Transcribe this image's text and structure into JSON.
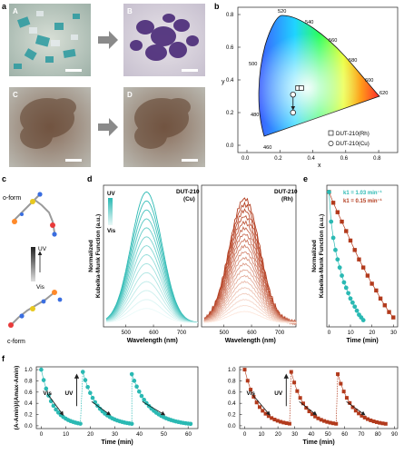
{
  "panel_letters": {
    "a": "a",
    "b": "b",
    "c": "c",
    "d": "d",
    "e": "e",
    "f": "f"
  },
  "micrographs": [
    {
      "letter": "A"
    },
    {
      "letter": "B"
    },
    {
      "letter": "C"
    },
    {
      "letter": "D"
    }
  ],
  "colors": {
    "cu": "#2ab9b3",
    "rh": "#b23a1c",
    "cu_light": "#bfeae7",
    "rh_light": "#f2b79a"
  },
  "molecule": {
    "o_form": "o-form",
    "c_form": "c-form",
    "uv": "UV",
    "vis": "Vis"
  },
  "cie": {
    "xlabel": "x",
    "ylabel": "y",
    "x_ticks": [
      "0.0",
      "0.2",
      "0.4",
      "0.6",
      "0.8"
    ],
    "y_ticks": [
      "0.0",
      "0.2",
      "0.4",
      "0.6",
      "0.8"
    ],
    "wavelengths": [
      "460",
      "480",
      "500",
      "520",
      "540",
      "560",
      "580",
      "600",
      "620"
    ],
    "legend": [
      "DUT-210(Rh)",
      "DUT-210(Cu)"
    ],
    "points": {
      "rh": [
        [
          0.31,
          0.35
        ],
        [
          0.33,
          0.35
        ]
      ],
      "cu": [
        [
          0.28,
          0.31
        ],
        [
          0.28,
          0.2
        ]
      ]
    }
  },
  "chart_data": [
    {
      "panel": "d-left",
      "type": "line",
      "title": "DUT-210 (Cu)",
      "xlabel": "Wavelength (nm)",
      "ylabel": "Normalized Kubelka-Munk Function (a.u.)",
      "xlim": [
        420,
        760
      ],
      "ylim": [
        0,
        1.05
      ],
      "x_ticks": [
        "500",
        "600",
        "700"
      ],
      "peak": 575,
      "curves": 14,
      "max_amplitude": 0.93,
      "labels": [
        "UV",
        "Vis"
      ]
    },
    {
      "panel": "d-right",
      "type": "line",
      "title": "DUT-210 (Rh)",
      "xlabel": "Wavelength (nm)",
      "xlim": [
        420,
        760
      ],
      "ylim": [
        0,
        1.05
      ],
      "x_ticks": [
        "500",
        "600",
        "700"
      ],
      "peak": 575,
      "curves": 20,
      "max_amplitude": 0.88
    },
    {
      "panel": "e",
      "type": "scatter",
      "xlabel": "Time (min)",
      "ylabel": "Normalized Kubelka-Munk Function (a.u.)",
      "xlim": [
        -1,
        32
      ],
      "ylim": [
        0,
        1.05
      ],
      "x_ticks": [
        "0",
        "10",
        "20",
        "30"
      ],
      "legend": [
        "k1 = 1.03 min⁻¹",
        "k1 = 0.15 min⁻¹"
      ],
      "series": [
        {
          "name": "Cu",
          "x": [
            0,
            1,
            2,
            3,
            4,
            5,
            6,
            7,
            8,
            9,
            10,
            11,
            12,
            13,
            14,
            15,
            16
          ],
          "y": [
            1.0,
            0.78,
            0.66,
            0.57,
            0.5,
            0.44,
            0.38,
            0.33,
            0.29,
            0.25,
            0.21,
            0.18,
            0.15,
            0.12,
            0.09,
            0.07,
            0.05
          ]
        },
        {
          "name": "Rh",
          "x": [
            0,
            2,
            4,
            6,
            8,
            10,
            12,
            14,
            16,
            18,
            20,
            22,
            24,
            26,
            28,
            30
          ],
          "y": [
            1.0,
            0.92,
            0.85,
            0.78,
            0.71,
            0.64,
            0.57,
            0.5,
            0.44,
            0.38,
            0.32,
            0.27,
            0.21,
            0.16,
            0.11,
            0.07
          ]
        }
      ]
    },
    {
      "panel": "f-left",
      "type": "scatter",
      "xlabel": "Time (min)",
      "ylabel": "(A-Amin)/(Amax-Amin)",
      "xlim": [
        -2,
        64
      ],
      "ylim": [
        -0.05,
        1.05
      ],
      "x_ticks": [
        "0",
        "10",
        "20",
        "30",
        "40",
        "50",
        "60"
      ],
      "y_ticks": [
        "0.0",
        "0.2",
        "0.4",
        "0.6",
        "0.8",
        "1.0"
      ],
      "cycle_starts": [
        0,
        17,
        37
      ],
      "cycle_lengths": [
        16,
        20,
        24
      ],
      "labels": [
        "UV",
        "Vis"
      ]
    },
    {
      "panel": "f-right",
      "type": "scatter",
      "xlabel": "Time (min)",
      "xlim": [
        -3,
        92
      ],
      "ylim": [
        -0.05,
        1.05
      ],
      "x_ticks": [
        "0",
        "10",
        "20",
        "30",
        "40",
        "50",
        "60",
        "70",
        "80",
        "90"
      ],
      "y_ticks": [
        "0.0",
        "0.2",
        "0.4",
        "0.6",
        "0.8",
        "1.0"
      ],
      "cycle_starts": [
        0,
        28,
        56
      ],
      "cycle_lengths": [
        27,
        27,
        29
      ],
      "labels": [
        "UV",
        "Vis"
      ]
    }
  ]
}
